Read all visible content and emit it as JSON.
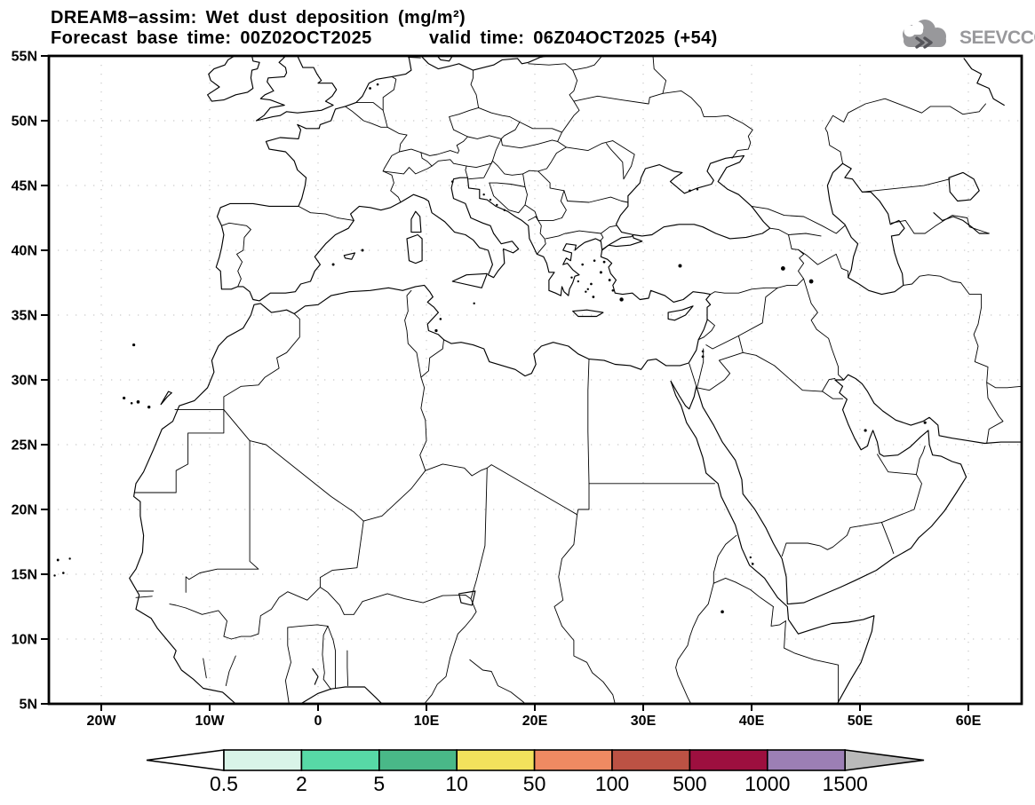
{
  "header": {
    "title": "DREAM8−assim: Wet dust deposition (mg/m²)",
    "base_time": "Forecast base time: 00Z02OCT2025",
    "valid_time": "valid time: 06Z04OCT2025 (+54)"
  },
  "logo": {
    "text": "SEEVCCC",
    "color": "#98989b",
    "icon": "cloud-icon"
  },
  "map": {
    "lat_labels": [
      "55N",
      "50N",
      "45N",
      "40N",
      "35N",
      "30N",
      "25N",
      "20N",
      "15N",
      "10N",
      "5N"
    ],
    "lat_values": [
      55,
      50,
      45,
      40,
      35,
      30,
      25,
      20,
      15,
      10,
      5
    ],
    "lon_labels": [
      "20W",
      "10W",
      "0",
      "10E",
      "20E",
      "30E",
      "40E",
      "50E",
      "60E"
    ],
    "lon_values": [
      -20,
      -10,
      0,
      10,
      20,
      30,
      40,
      50,
      60
    ],
    "grid_color": "#bdbdbd",
    "line_color": "#000000"
  },
  "colorbar": {
    "levels": [
      "0.5",
      "2",
      "5",
      "10",
      "50",
      "100",
      "500",
      "1000",
      "1500"
    ],
    "colors": [
      "#d9f4e8",
      "#57d9a6",
      "#49b888",
      "#f2e25c",
      "#ef8a62",
      "#bc5244",
      "#9d0f3f",
      "#9c7fb5"
    ],
    "left_arrow_color": "#ffffff",
    "right_arrow_color": "#b9b9b9"
  },
  "chart_data": {
    "type": "heatmap",
    "title": "DREAM8−assim: Wet dust deposition (mg/m²)",
    "legend_levels": [
      0.5,
      2,
      5,
      10,
      50,
      100,
      500,
      1000,
      1500
    ],
    "legend_colors": [
      "#d9f4e8",
      "#57d9a6",
      "#49b888",
      "#f2e25c",
      "#ef8a62",
      "#bc5244",
      "#9d0f3f",
      "#9c7fb5"
    ],
    "x_ticks": [
      "20W",
      "10W",
      "0",
      "10E",
      "20E",
      "30E",
      "40E",
      "50E",
      "60E"
    ],
    "y_ticks": [
      "55N",
      "50N",
      "45N",
      "40N",
      "35N",
      "30N",
      "25N",
      "20N",
      "15N",
      "10N",
      "5N"
    ],
    "values_plotted": "none (entire domain below 0.5 mg/m² — map area blank)"
  }
}
